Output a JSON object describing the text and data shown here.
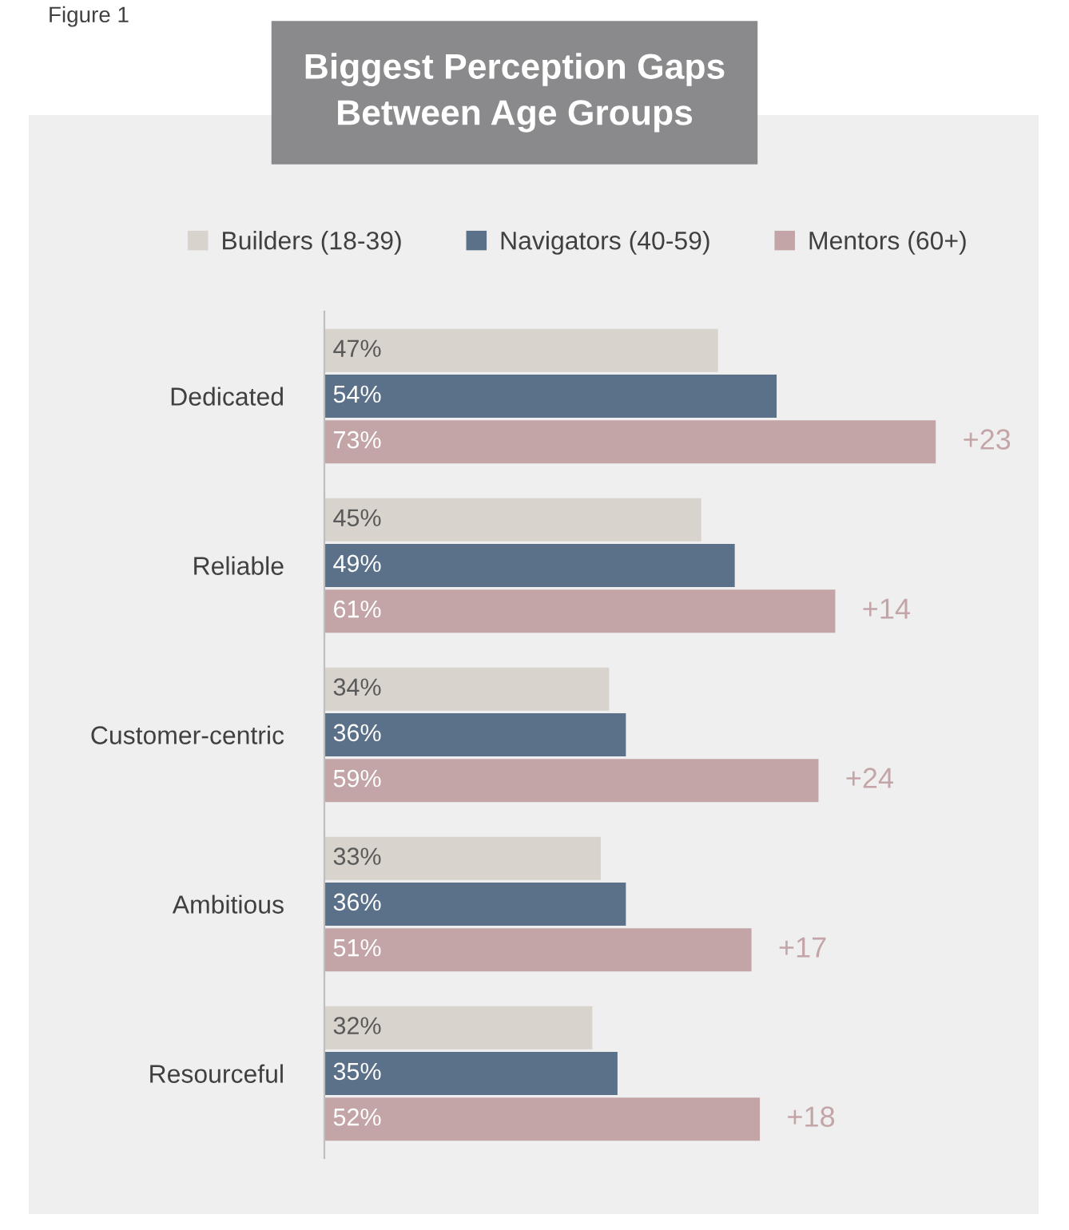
{
  "chart_data": {
    "type": "bar",
    "orientation": "horizontal",
    "title": "Biggest Perception Gaps\nBetween Age Groups",
    "categories": [
      "Dedicated",
      "Reliable",
      "Customer-centric",
      "Ambitious",
      "Resourceful"
    ],
    "series": [
      {
        "name": "Builders (18-39)",
        "color": "#d9d3cd",
        "values": [
          47,
          45,
          34,
          33,
          32
        ],
        "value_labels": [
          "47%",
          "45%",
          "34%",
          "33%",
          "32%"
        ]
      },
      {
        "name": "Navigators (40-59)",
        "color": "#5b7189",
        "values": [
          54,
          49,
          36,
          36,
          35
        ],
        "value_labels": [
          "54%",
          "49%",
          "36%",
          "36%",
          "35%"
        ]
      },
      {
        "name": "Mentors (60+)",
        "color": "#c4a5a7",
        "values": [
          73,
          61,
          59,
          51,
          52
        ],
        "value_labels": [
          "73%",
          "61%",
          "59%",
          "51%",
          "52%"
        ]
      }
    ],
    "annotations": [
      "Figure 1",
      "+23",
      "+14",
      "+24",
      "+17",
      "+18"
    ],
    "legend": "top",
    "grid": false,
    "tick_labels": "y"
  }
}
